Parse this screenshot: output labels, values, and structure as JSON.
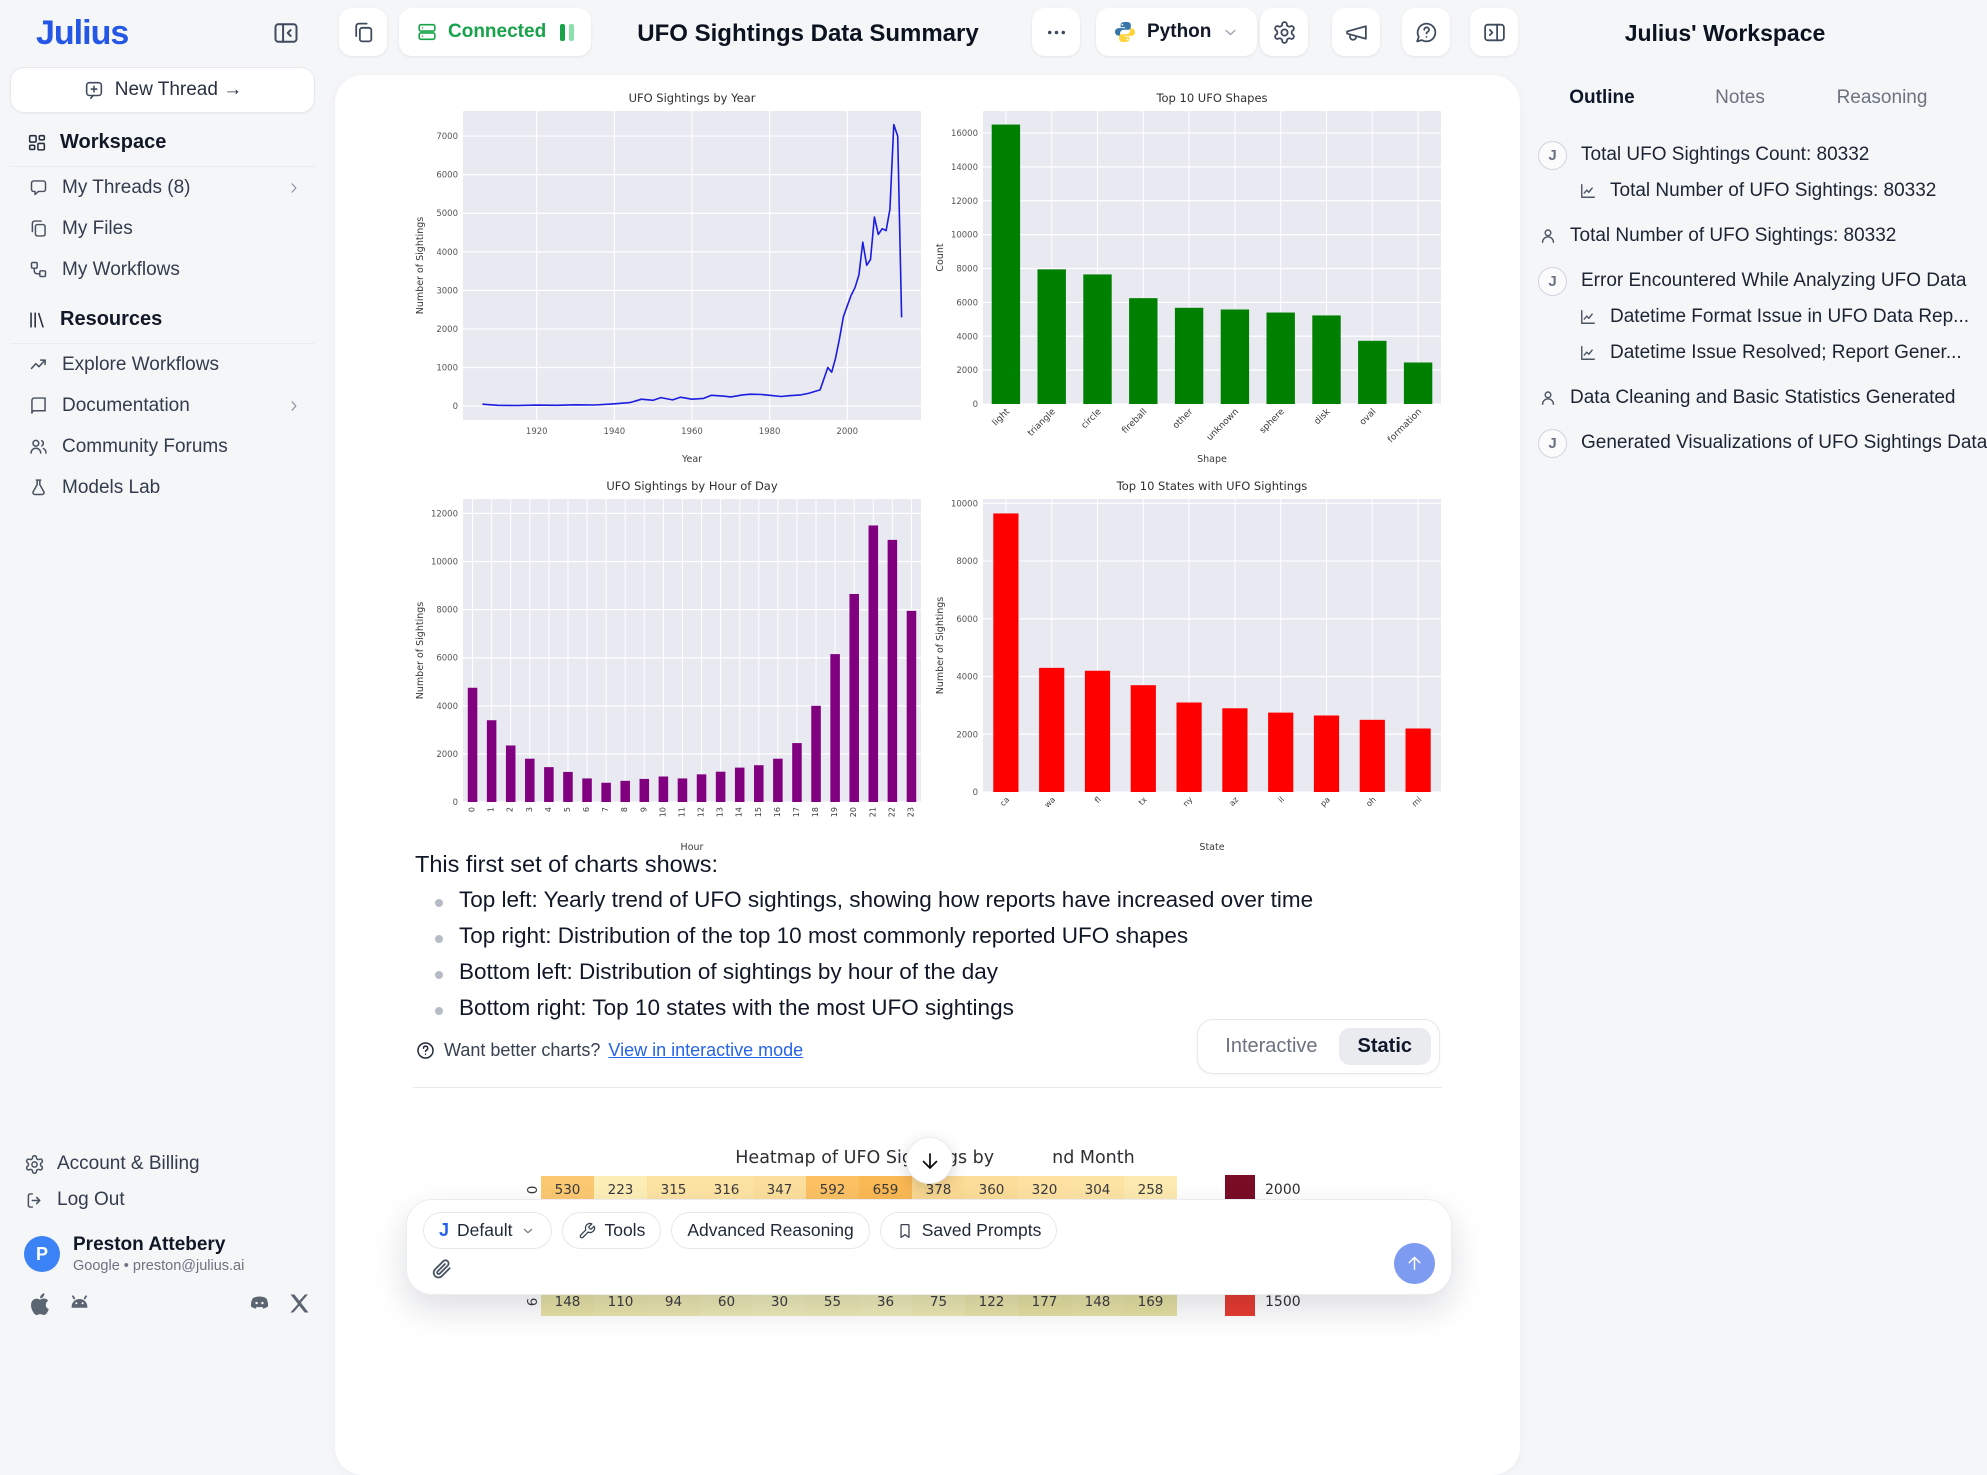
{
  "header": {
    "logo": "Julius",
    "connected_label": "Connected",
    "title": "UFO Sightings Data Summary",
    "python_label": "Python",
    "accent_blue": "#2457e6",
    "green": "#17a34a",
    "green_light": "#8ce0ad"
  },
  "sidebar": {
    "new_thread_label": "New Thread →",
    "sections": [
      {
        "title": "Workspace",
        "icon": "grid",
        "items": [
          {
            "icon": "message",
            "label": "My Threads (8)",
            "chevron": true
          },
          {
            "icon": "files",
            "label": "My Files"
          },
          {
            "icon": "workflow",
            "label": "My Workflows"
          }
        ]
      },
      {
        "title": "Resources",
        "icon": "library",
        "items": [
          {
            "icon": "trend",
            "label": "Explore Workflows"
          },
          {
            "icon": "book",
            "label": "Documentation",
            "chevron": true
          },
          {
            "icon": "users",
            "label": "Community Forums"
          },
          {
            "icon": "flask",
            "label": "Models Lab"
          }
        ]
      }
    ],
    "footer_links": [
      {
        "icon": "gear",
        "label": "Account & Billing"
      },
      {
        "icon": "logout",
        "label": "Log Out"
      }
    ],
    "user": {
      "initial": "P",
      "name": "Preston Attebery",
      "meta": "Google • preston@julius.ai"
    },
    "platform_icons": [
      "apple",
      "android",
      "discord",
      "xlogo"
    ]
  },
  "panel": {
    "title": "Julius' Workspace",
    "tabs": [
      {
        "label": "Outline",
        "active": true
      },
      {
        "label": "Notes",
        "active": false
      },
      {
        "label": "Reasoning",
        "active": false
      }
    ],
    "items": [
      {
        "icon": "julius",
        "text": "Total UFO Sightings Count: 80332"
      },
      {
        "icon": "chart",
        "sub": true,
        "text": "Total Number of UFO Sightings: 80332"
      },
      {
        "icon": "user",
        "text": "Total Number of UFO Sightings: 80332"
      },
      {
        "icon": "julius",
        "text": "Error Encountered While Analyzing UFO Data"
      },
      {
        "icon": "chart",
        "sub": true,
        "text": "Datetime Format Issue in UFO Data Rep..."
      },
      {
        "icon": "chart",
        "sub": true,
        "text": "Datetime Issue Resolved; Report Gener..."
      },
      {
        "icon": "user",
        "text": "Data Cleaning and Basic Statistics Generated"
      },
      {
        "icon": "julius",
        "text": "Generated Visualizations of UFO Sightings Data"
      }
    ],
    "julius_badge_letter": "J"
  },
  "summary": {
    "heading": "This first set of charts shows:",
    "bullets": [
      "Top left: Yearly trend of UFO sightings, showing how reports have increased over time",
      "Top right: Distribution of the top 10 most commonly reported UFO shapes",
      "Bottom left: Distribution of sightings by hour of the day",
      "Bottom right: Top 10 states with the most UFO sightings"
    ]
  },
  "charts_footer": {
    "prompt": "Want better charts?",
    "link_label": "View in interactive mode",
    "toggle": [
      {
        "label": "Interactive",
        "active": false
      },
      {
        "label": "Static",
        "active": true
      }
    ]
  },
  "heatmap": {
    "title_prefix": "Heatmap of UFO Sightings by",
    "title_suffix": "nd Month",
    "rows": [
      {
        "label": "0",
        "values": [
          530,
          223,
          315,
          316,
          347,
          592,
          659,
          378,
          360,
          320,
          304,
          258
        ],
        "color_low": "#fdeeb8",
        "color_high": "#fbb954",
        "legend_label": "2000",
        "legend_color": "#7a0c26"
      },
      {
        "label": "6",
        "values": [
          148,
          110,
          94,
          60,
          30,
          55,
          36,
          75,
          122,
          177,
          148,
          169
        ],
        "color_low": "#edeab8",
        "color_high": "#e5dfa0",
        "legend_label": "1500",
        "legend_color": "#e73b30"
      }
    ]
  },
  "composer": {
    "chips": [
      {
        "icon": "julius",
        "label": "Default",
        "chevron": true
      },
      {
        "icon": "wrench",
        "label": "Tools"
      },
      {
        "label": "Advanced Reasoning"
      },
      {
        "icon": "bookmark",
        "label": "Saved Prompts"
      }
    ]
  },
  "chart_data": [
    {
      "id": "sightings-by-year",
      "type": "line",
      "title": "UFO Sightings by Year",
      "xlabel": "Year",
      "ylabel": "Number of Sightings",
      "color": "#1c1ce0",
      "grid": true,
      "plot_bg": "#e9e9f2",
      "xlim": [
        1901,
        2019
      ],
      "ylim": [
        -360,
        7650
      ],
      "xticks": [
        1920,
        1940,
        1960,
        1980,
        2000
      ],
      "yticks": [
        0,
        1000,
        2000,
        3000,
        4000,
        5000,
        6000,
        7000
      ],
      "x": [
        1906,
        1910,
        1915,
        1920,
        1925,
        1930,
        1935,
        1940,
        1944,
        1947,
        1950,
        1952,
        1955,
        1957,
        1960,
        1963,
        1965,
        1968,
        1970,
        1973,
        1975,
        1978,
        1980,
        1983,
        1985,
        1988,
        1990,
        1993,
        1995,
        1996,
        1997,
        1998,
        1999,
        2000,
        2001,
        2002,
        2003,
        2004,
        2005,
        2006,
        2007,
        2008,
        2009,
        2010,
        2011,
        2012,
        2013,
        2014
      ],
      "values": [
        50,
        20,
        15,
        25,
        20,
        35,
        30,
        60,
        90,
        180,
        150,
        220,
        160,
        230,
        180,
        200,
        280,
        260,
        240,
        290,
        310,
        300,
        280,
        250,
        270,
        290,
        330,
        420,
        1000,
        880,
        1250,
        1750,
        2320,
        2600,
        2870,
        3070,
        3400,
        4250,
        3650,
        3800,
        4900,
        4450,
        4600,
        4550,
        5100,
        7300,
        7000,
        2300
      ]
    },
    {
      "id": "top-shapes",
      "type": "bar",
      "title": "Top 10 UFO Shapes",
      "xlabel": "Shape",
      "ylabel": "Count",
      "color": "#008000",
      "rotate": 45,
      "barw": 0.62,
      "plot_bg": "#e9e9f2",
      "ylim": [
        0,
        17300
      ],
      "yticks": [
        0,
        2000,
        4000,
        6000,
        8000,
        10000,
        12000,
        14000,
        16000
      ],
      "categories": [
        "light",
        "triangle",
        "circle",
        "fireball",
        "other",
        "unknown",
        "sphere",
        "disk",
        "oval",
        "formation"
      ],
      "values": [
        16500,
        7950,
        7650,
        6250,
        5680,
        5580,
        5400,
        5230,
        3730,
        2450
      ]
    },
    {
      "id": "by-hour",
      "type": "bar",
      "title": "UFO Sightings by Hour of Day",
      "xlabel": "Hour",
      "ylabel": "Number of Sightings",
      "color": "#800080",
      "rotate": 90,
      "barw": 0.5,
      "plot_bg": "#e9e9f2",
      "ylim": [
        0,
        12600
      ],
      "yticks": [
        0,
        2000,
        4000,
        6000,
        8000,
        10000,
        12000
      ],
      "categories": [
        "0",
        "1",
        "2",
        "3",
        "4",
        "5",
        "6",
        "7",
        "8",
        "9",
        "10",
        "11",
        "12",
        "13",
        "14",
        "15",
        "16",
        "17",
        "18",
        "19",
        "20",
        "21",
        "22",
        "23"
      ],
      "values": [
        4750,
        3400,
        2350,
        1800,
        1450,
        1250,
        980,
        800,
        880,
        960,
        1060,
        980,
        1150,
        1260,
        1430,
        1530,
        1800,
        2450,
        4000,
        6150,
        8650,
        11500,
        10900,
        7950
      ]
    },
    {
      "id": "top-states",
      "type": "bar",
      "title": "Top 10 States with UFO Sightings",
      "xlabel": "State",
      "ylabel": "Number of Sightings",
      "color": "#ff0000",
      "rotate": 45,
      "barw": 0.55,
      "plot_bg": "#e9e9f2",
      "ylim": [
        0,
        10150
      ],
      "yticks": [
        0,
        2000,
        4000,
        6000,
        8000,
        10000
      ],
      "categories": [
        "ca",
        "wa",
        "fl",
        "tx",
        "ny",
        "az",
        "il",
        "pa",
        "oh",
        "mi"
      ],
      "values": [
        9650,
        4300,
        4200,
        3700,
        3100,
        2900,
        2750,
        2650,
        2500,
        2200
      ]
    }
  ]
}
